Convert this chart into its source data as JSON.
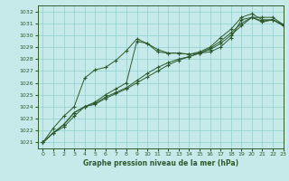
{
  "title": "Graphe pression niveau de la mer (hPa)",
  "background_color": "#c6eaea",
  "grid_color": "#8ecece",
  "line_color": "#2d5a2d",
  "xlim": [
    -0.5,
    23
  ],
  "ylim": [
    1020.5,
    1032.5
  ],
  "xticks": [
    0,
    1,
    2,
    3,
    4,
    5,
    6,
    7,
    8,
    9,
    10,
    11,
    12,
    13,
    14,
    15,
    16,
    17,
    18,
    19,
    20,
    21,
    22,
    23
  ],
  "yticks": [
    1021,
    1022,
    1023,
    1024,
    1025,
    1026,
    1027,
    1028,
    1029,
    1030,
    1031,
    1032
  ],
  "series": [
    [
      1021.0,
      1021.8,
      1022.3,
      1023.2,
      1024.0,
      1024.4,
      1025.0,
      1025.5,
      1026.0,
      1029.5,
      1029.3,
      1028.8,
      1028.5,
      1028.5,
      1028.4,
      1028.5,
      1028.6,
      1029.0,
      1029.8,
      1031.3,
      1031.5,
      1031.1,
      1031.3,
      1030.8
    ],
    [
      1021.0,
      1021.8,
      1022.5,
      1023.5,
      1024.0,
      1024.3,
      1024.8,
      1025.2,
      1025.6,
      1026.2,
      1026.8,
      1027.3,
      1027.7,
      1028.0,
      1028.2,
      1028.5,
      1028.8,
      1029.3,
      1030.0,
      1030.8,
      1031.5,
      1031.5,
      1031.5,
      1030.9
    ],
    [
      1021.0,
      1021.8,
      1022.5,
      1023.5,
      1024.0,
      1024.2,
      1024.7,
      1025.1,
      1025.5,
      1026.0,
      1026.5,
      1027.0,
      1027.5,
      1027.9,
      1028.2,
      1028.5,
      1028.9,
      1029.5,
      1030.2,
      1031.0,
      1031.5,
      1031.2,
      1031.3,
      1030.8
    ],
    [
      1021.0,
      1022.2,
      1023.2,
      1024.0,
      1026.4,
      1027.1,
      1027.3,
      1027.9,
      1028.7,
      1029.7,
      1029.3,
      1028.6,
      1028.5,
      1028.5,
      1028.4,
      1028.6,
      1029.0,
      1029.8,
      1030.5,
      1031.5,
      1031.8,
      1031.3,
      1031.3,
      1030.9
    ]
  ]
}
